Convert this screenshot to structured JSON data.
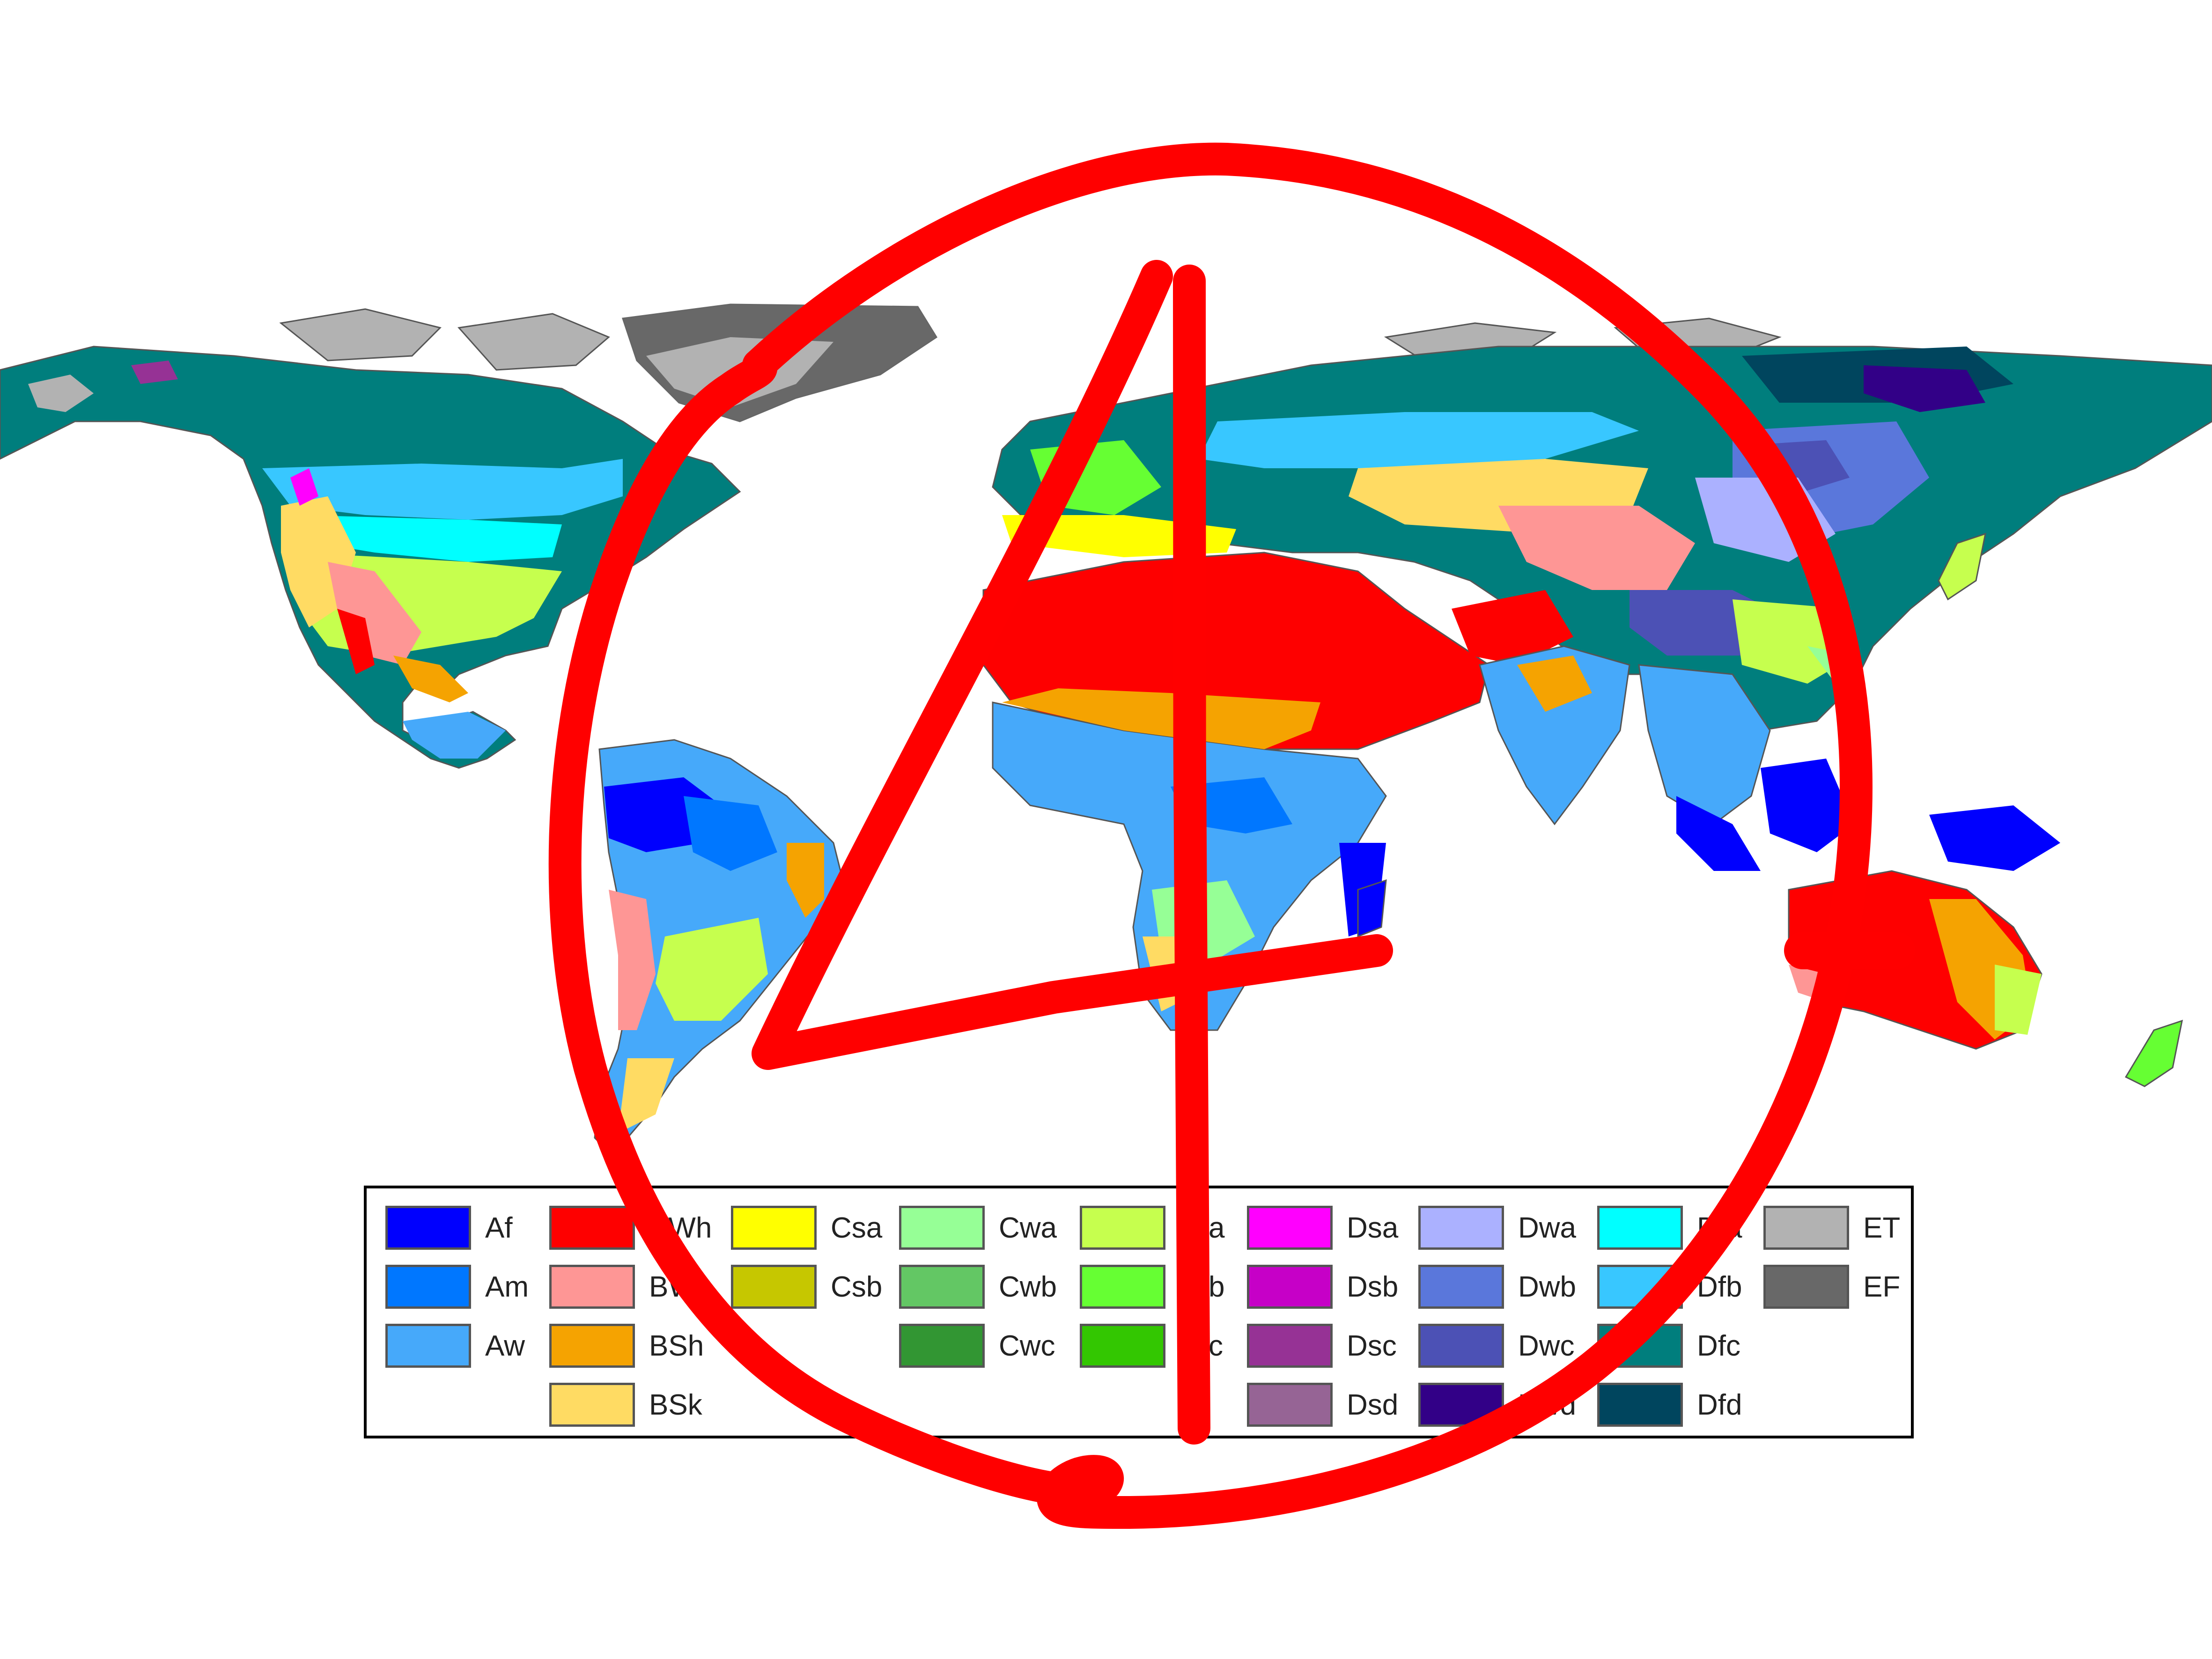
{
  "legend": {
    "items": [
      {
        "code": "Af",
        "color": "#0000fe"
      },
      {
        "code": "Am",
        "color": "#0077ff"
      },
      {
        "code": "Aw",
        "color": "#46a9fa"
      },
      {
        "code": "BWh",
        "color": "#fe0000"
      },
      {
        "code": "BWk",
        "color": "#fe9695"
      },
      {
        "code": "BSh",
        "color": "#f5a301"
      },
      {
        "code": "BSk",
        "color": "#ffdb63"
      },
      {
        "code": "Csa",
        "color": "#ffff00"
      },
      {
        "code": "Csb",
        "color": "#c6c700"
      },
      {
        "code": "Cwa",
        "color": "#96ff96"
      },
      {
        "code": "Cwb",
        "color": "#63c764"
      },
      {
        "code": "Cwc",
        "color": "#329633"
      },
      {
        "code": "Cfa",
        "color": "#c6ff4e"
      },
      {
        "code": "Cfb",
        "color": "#66ff33"
      },
      {
        "code": "Cfc",
        "color": "#33c701"
      },
      {
        "code": "Dsa",
        "color": "#ff00fe"
      },
      {
        "code": "Dsb",
        "color": "#c600c7"
      },
      {
        "code": "Dsc",
        "color": "#963295"
      },
      {
        "code": "Dsd",
        "color": "#966495"
      },
      {
        "code": "Dwa",
        "color": "#abb1ff"
      },
      {
        "code": "Dwb",
        "color": "#5a77db"
      },
      {
        "code": "Dwc",
        "color": "#4c51b5"
      },
      {
        "code": "Dwd",
        "color": "#320087"
      },
      {
        "code": "Dfa",
        "color": "#00ffff"
      },
      {
        "code": "Dfb",
        "color": "#38c7ff"
      },
      {
        "code": "Dfc",
        "color": "#007e7d"
      },
      {
        "code": "Dfd",
        "color": "#00455e"
      },
      {
        "code": "ET",
        "color": "#b2b2b2"
      },
      {
        "code": "EF",
        "color": "#686868"
      }
    ]
  },
  "annotation": {
    "digit": "4",
    "color": "#ff0000"
  }
}
